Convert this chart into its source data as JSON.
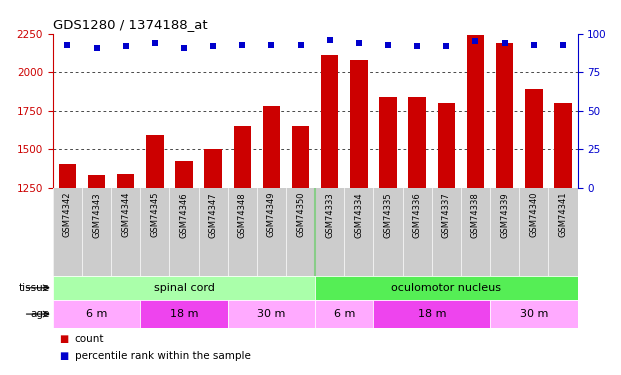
{
  "title": "GDS1280 / 1374188_at",
  "samples": [
    "GSM74342",
    "GSM74343",
    "GSM74344",
    "GSM74345",
    "GSM74346",
    "GSM74347",
    "GSM74348",
    "GSM74349",
    "GSM74350",
    "GSM74333",
    "GSM74334",
    "GSM74335",
    "GSM74336",
    "GSM74337",
    "GSM74338",
    "GSM74339",
    "GSM74340",
    "GSM74341"
  ],
  "counts": [
    1400,
    1330,
    1340,
    1590,
    1420,
    1500,
    1650,
    1780,
    1650,
    2110,
    2080,
    1840,
    1840,
    1800,
    2240,
    2190,
    1890,
    1800
  ],
  "percentile_ranks": [
    93,
    91,
    92,
    94,
    91,
    92,
    93,
    93,
    93,
    96,
    94,
    93,
    92,
    92,
    95,
    94,
    93,
    93
  ],
  "bar_color": "#cc0000",
  "dot_color": "#0000cc",
  "ylim_left": [
    1250,
    2250
  ],
  "ylim_right": [
    0,
    100
  ],
  "yticks_left": [
    1250,
    1500,
    1750,
    2000,
    2250
  ],
  "yticks_right": [
    0,
    25,
    50,
    75,
    100
  ],
  "tissue_spinal_color": "#aaffaa",
  "tissue_ocul_color": "#55ee55",
  "age_light_color": "#ffaaff",
  "age_dark_color": "#ee44ee",
  "xticklabel_bg": "#cccccc",
  "plot_bg": "#ffffff",
  "tissue_labels": [
    {
      "label": "spinal cord",
      "start": 0,
      "end": 9
    },
    {
      "label": "oculomotor nucleus",
      "start": 9,
      "end": 18
    }
  ],
  "age_groups": [
    {
      "label": "6 m",
      "start": 0,
      "end": 3,
      "dark": false
    },
    {
      "label": "18 m",
      "start": 3,
      "end": 6,
      "dark": true
    },
    {
      "label": "30 m",
      "start": 6,
      "end": 9,
      "dark": false
    },
    {
      "label": "6 m",
      "start": 9,
      "end": 11,
      "dark": false
    },
    {
      "label": "18 m",
      "start": 11,
      "end": 15,
      "dark": true
    },
    {
      "label": "30 m",
      "start": 15,
      "end": 18,
      "dark": false
    }
  ]
}
